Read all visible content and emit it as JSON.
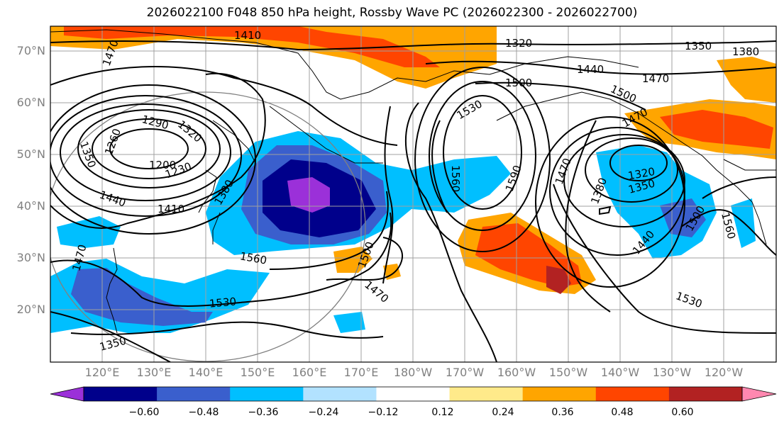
{
  "title": "2026022100 F048 850 hPa height, Rossby Wave PC (2026022300 - 2026022700)",
  "lat_labels": [
    "70°N",
    "60°N",
    "50°N",
    "40°N",
    "30°N",
    "20°N"
  ],
  "lon_labels": [
    "120°E",
    "130°E",
    "140°E",
    "150°E",
    "160°E",
    "170°E",
    "180°W",
    "170°W",
    "160°W",
    "150°W",
    "140°W",
    "130°W",
    "120°W"
  ],
  "contour_labels": [
    "1410",
    "1320",
    "1350",
    "1380",
    "1470",
    "1440",
    "1470",
    "1500",
    "1500",
    "1530",
    "1290",
    "1320",
    "1350",
    "1260",
    "1200",
    "1230",
    "1440",
    "1410",
    "1380",
    "1560",
    "1590",
    "1470",
    "1380",
    "1320",
    "1350",
    "1440",
    "1500",
    "1560",
    "1560",
    "1500",
    "1470",
    "1530",
    "1530",
    "1470",
    "1350",
    "1470"
  ],
  "colorbar": {
    "ticks": [
      "−0.60",
      "−0.48",
      "−0.36",
      "−0.24",
      "−0.12",
      "0.12",
      "0.24",
      "0.36",
      "0.48",
      "0.60"
    ],
    "colors": [
      "#9b30d9",
      "#00008b",
      "#3a5fcd",
      "#00bfff",
      "#b2e2ff",
      "#ffffff",
      "#ffea8a",
      "#ffa500",
      "#ff4500",
      "#b22222",
      "#ff88b0"
    ]
  }
}
